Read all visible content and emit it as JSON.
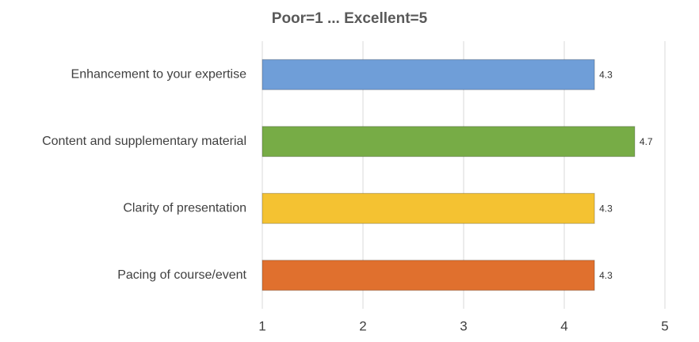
{
  "chart_data": {
    "type": "hbar",
    "title": "Poor=1 ... Excellent=5",
    "categories": [
      "Enhancement to your expertise",
      "Content and supplementary material",
      "Clarity of presentation",
      "Pacing of course/event"
    ],
    "values": [
      4.3,
      4.7,
      4.3,
      4.3
    ],
    "colors": [
      "#6f9ed8",
      "#77ac46",
      "#f4c232",
      "#e0702e"
    ],
    "xlim": [
      1,
      5
    ],
    "xticks": [
      1,
      2,
      3,
      4,
      5
    ],
    "grid": true
  }
}
